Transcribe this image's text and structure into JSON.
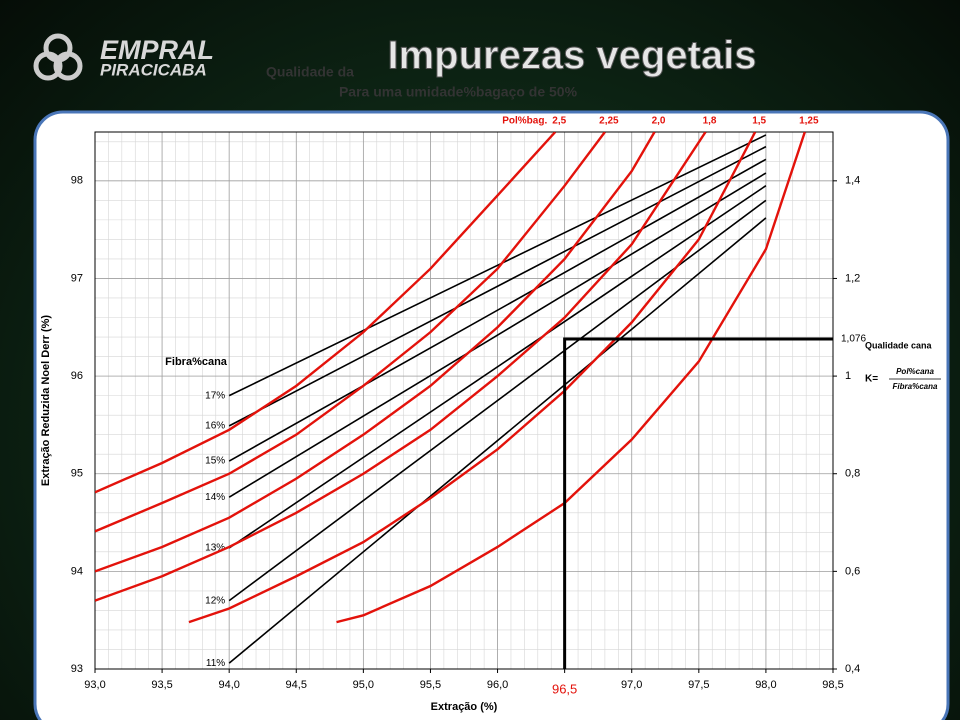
{
  "slide": {
    "title": "Impurezas vegetais",
    "logo": [
      "EMPRAL",
      "PIRACICABA"
    ]
  },
  "chart_data": {
    "type": "line",
    "title": "Qualidade da",
    "subtitle": "Para uma umidade%bagaço de 50%",
    "x_label": "Extração (%)",
    "y_label": "Extração Reduzida Noel Derr (%)",
    "xlim": [
      93,
      98.5
    ],
    "xticks": [
      {
        "value": 93,
        "label": "93,0"
      },
      {
        "value": 93.5,
        "label": "93,5"
      },
      {
        "value": 94,
        "label": "94,0"
      },
      {
        "value": 94.5,
        "label": "94,5"
      },
      {
        "value": 95,
        "label": "95,0"
      },
      {
        "value": 95.5,
        "label": "95,5"
      },
      {
        "value": 96,
        "label": "96,0"
      },
      {
        "value": 96.5,
        "label": "96,5"
      },
      {
        "value": 97,
        "label": "97,0"
      },
      {
        "value": 97.5,
        "label": "97,5"
      },
      {
        "value": 98,
        "label": "98,0"
      },
      {
        "value": 98.5,
        "label": "98,5"
      }
    ],
    "ylim": [
      93,
      98.5
    ],
    "yticks": [
      93,
      94,
      95,
      96,
      97,
      98
    ],
    "y2lim": [
      0.4,
      1.5
    ],
    "y2ticks": [
      {
        "value": 0.4,
        "label": "0,4"
      },
      {
        "value": 0.6,
        "label": "0,6"
      },
      {
        "value": 0.8,
        "label": "0,8"
      },
      1,
      {
        "value": 1.2,
        "label": "1,2"
      },
      {
        "value": 1.4,
        "label": "1,4"
      }
    ],
    "grid": true,
    "xminor": 0.1,
    "yminor": 0.2,
    "series_groups": [
      {
        "label": "Fibra%cana",
        "series": [
          {
            "name": "17%",
            "color": "#000000",
            "x": [
              94,
              98
            ],
            "values": [
              95.8,
              98.47
            ]
          },
          {
            "name": "16%",
            "color": "#000000",
            "x": [
              94,
              98
            ],
            "values": [
              95.49,
              98.35
            ]
          },
          {
            "name": "15%",
            "color": "#000000",
            "x": [
              94,
              98
            ],
            "values": [
              95.13,
              98.22
            ]
          },
          {
            "name": "14%",
            "color": "#000000",
            "x": [
              94,
              98
            ],
            "values": [
              94.76,
              98.08
            ]
          },
          {
            "name": "13%",
            "color": "#000000",
            "x": [
              94,
              98
            ],
            "values": [
              94.24,
              97.95
            ]
          },
          {
            "name": "12%",
            "color": "#000000",
            "x": [
              94,
              98
            ],
            "values": [
              93.7,
              97.8
            ]
          },
          {
            "name": "11%",
            "color": "#000000",
            "x": [
              94,
              98
            ],
            "values": [
              93.06,
              97.62
            ]
          }
        ]
      },
      {
        "label": "Pol%bag.",
        "series": [
          {
            "name": "2,5",
            "color": "#e3120b",
            "x": [
              93,
              93.5,
              94,
              94.5,
              95,
              95.5,
              96,
              96.43
            ],
            "values": [
              94.81,
              95.11,
              95.45,
              95.9,
              96.45,
              97.1,
              97.85,
              98.5
            ]
          },
          {
            "name": "2,25",
            "color": "#e3120b",
            "x": [
              93,
              93.5,
              94,
              94.5,
              95,
              95.5,
              96,
              96.5,
              96.8
            ],
            "values": [
              94.41,
              94.7,
              95.0,
              95.4,
              95.9,
              96.45,
              97.1,
              97.95,
              98.5
            ]
          },
          {
            "name": "2,0",
            "color": "#e3120b",
            "x": [
              93,
              93.5,
              94,
              94.5,
              95,
              95.5,
              96,
              96.5,
              97,
              97.17
            ],
            "values": [
              94.0,
              94.25,
              94.55,
              94.95,
              95.4,
              95.9,
              96.5,
              97.2,
              98.1,
              98.5
            ]
          },
          {
            "name": "1,8",
            "color": "#e3120b",
            "x": [
              93,
              93.5,
              94,
              94.5,
              95,
              95.5,
              96,
              96.5,
              97,
              97.55
            ],
            "values": [
              93.7,
              93.95,
              94.25,
              94.6,
              95.0,
              95.45,
              96.0,
              96.6,
              97.35,
              98.5
            ]
          },
          {
            "name": "1,5",
            "color": "#e3120b",
            "x": [
              93.7,
              94,
              94.5,
              95,
              95.5,
              96,
              96.5,
              97,
              97.5,
              97.92
            ],
            "values": [
              93.48,
              93.62,
              93.95,
              94.3,
              94.75,
              95.25,
              95.85,
              96.55,
              97.4,
              98.5
            ]
          },
          {
            "name": "1,25",
            "color": "#e3120b",
            "x": [
              94.8,
              95,
              95.5,
              96,
              96.5,
              97,
              97.5,
              98,
              98.29
            ],
            "values": [
              93.48,
              93.55,
              93.85,
              94.25,
              94.7,
              95.35,
              96.15,
              97.3,
              98.5
            ]
          }
        ]
      }
    ],
    "marker": {
      "x": 96.5,
      "x_label": "96,5",
      "y2": 1.076,
      "y2_label": "1,076",
      "label": "Qualidade cana"
    },
    "formula": {
      "lhs": "K=",
      "numerator": "Pol%cana",
      "denominator": "Fibra%cana"
    }
  }
}
